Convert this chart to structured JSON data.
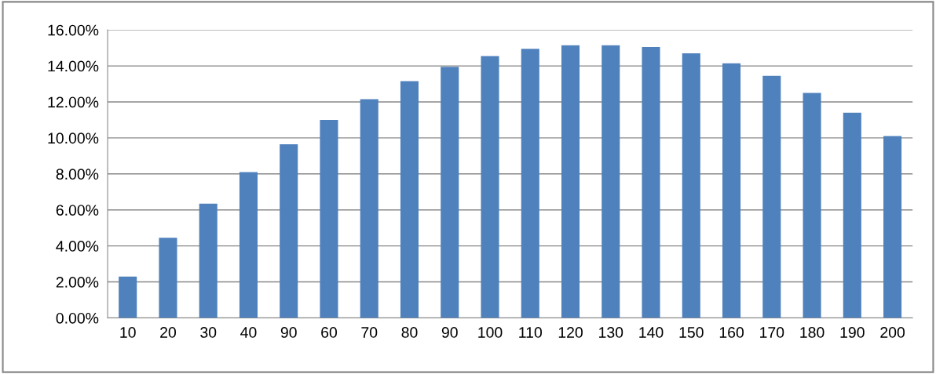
{
  "chart_data": {
    "type": "bar",
    "categories": [
      "10",
      "20",
      "30",
      "40",
      "90",
      "60",
      "70",
      "80",
      "90",
      "100",
      "110",
      "120",
      "130",
      "140",
      "150",
      "160",
      "170",
      "180",
      "190",
      "200"
    ],
    "values": [
      2.3,
      4.45,
      6.35,
      8.1,
      9.65,
      11.0,
      12.15,
      13.15,
      13.95,
      14.55,
      14.95,
      15.15,
      15.15,
      15.05,
      14.7,
      14.15,
      13.45,
      12.5,
      11.4,
      10.1
    ],
    "color": "#4f81bd",
    "ylim": [
      0,
      16
    ],
    "yticks": [
      {
        "value": 0,
        "label": "0.00%"
      },
      {
        "value": 2,
        "label": "2.00%"
      },
      {
        "value": 4,
        "label": "4.00%"
      },
      {
        "value": 6,
        "label": "6.00%"
      },
      {
        "value": 8,
        "label": "8.00%"
      },
      {
        "value": 10,
        "label": "10.00%"
      },
      {
        "value": 12,
        "label": "12.00%"
      },
      {
        "value": 14,
        "label": "14.00%"
      },
      {
        "value": 16,
        "label": "16.00%"
      }
    ],
    "grid": "y",
    "legend": false
  }
}
